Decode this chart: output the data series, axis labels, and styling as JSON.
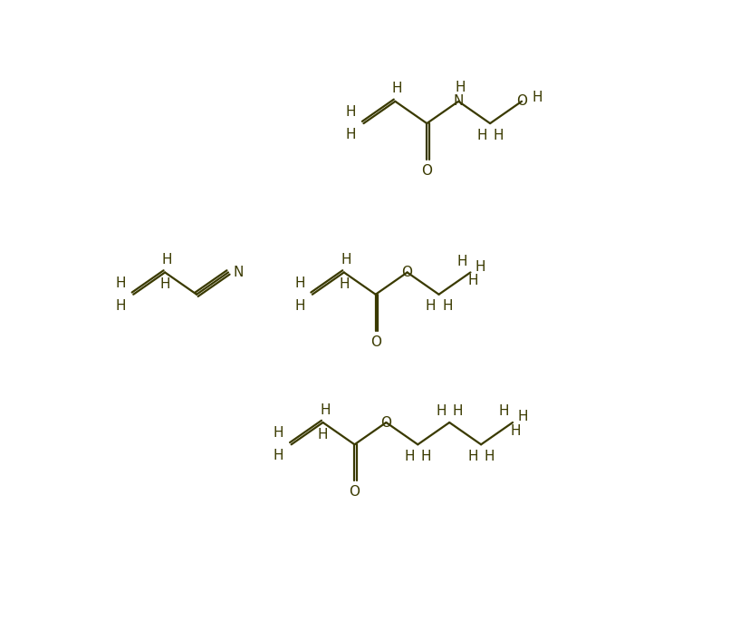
{
  "bg_color": "#ffffff",
  "bond_color": "#3a3a00",
  "fig_width": 8.06,
  "fig_height": 6.85,
  "dpi": 100,
  "xlim": [
    0,
    806
  ],
  "ylim": [
    0,
    685
  ],
  "font_size": 11,
  "lw": 1.6
}
